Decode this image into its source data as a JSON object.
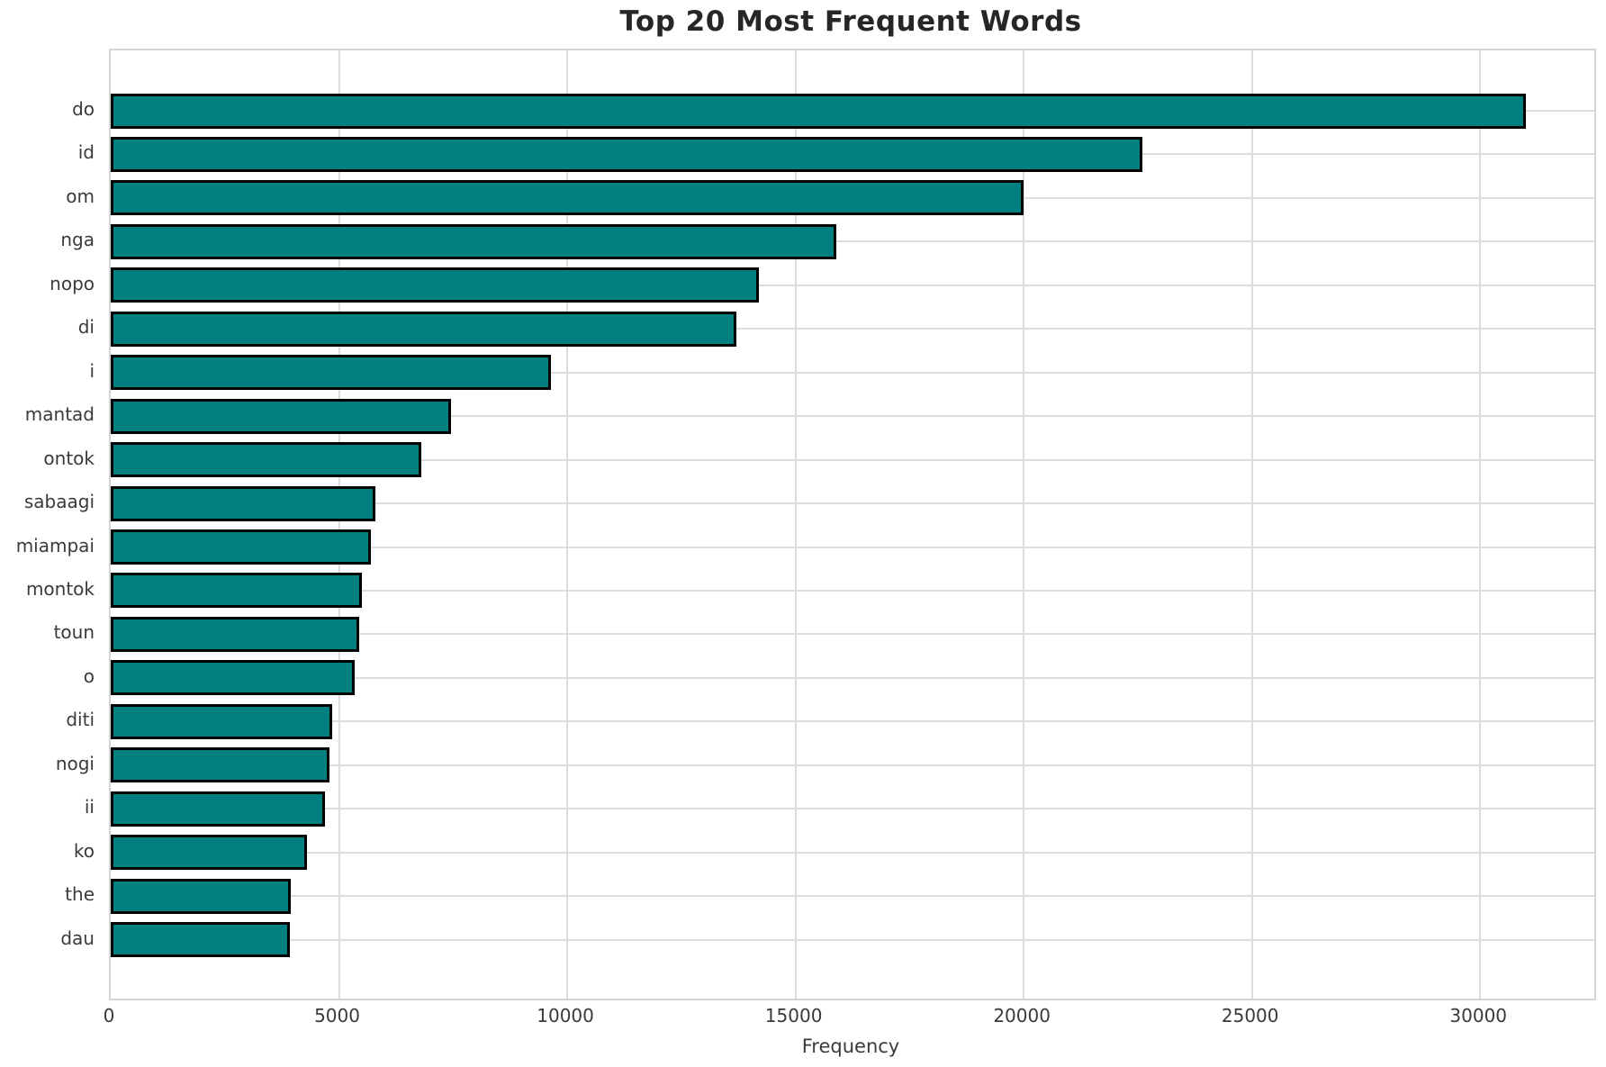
{
  "title": "Top 20 Most Frequent Words",
  "chart_data": {
    "type": "bar",
    "orientation": "horizontal",
    "title": "Top 20 Most Frequent Words",
    "xlabel": "Frequency",
    "ylabel": "",
    "categories": [
      "do",
      "id",
      "om",
      "nga",
      "nopo",
      "di",
      "i",
      "mantad",
      "ontok",
      "sabaagi",
      "miampai",
      "montok",
      "toun",
      "o",
      "diti",
      "nogi",
      "ii",
      "ko",
      "the",
      "dau"
    ],
    "values": [
      31000,
      22600,
      20000,
      15900,
      14200,
      13700,
      9650,
      7450,
      6800,
      5800,
      5700,
      5500,
      5450,
      5350,
      4850,
      4800,
      4700,
      4300,
      3950,
      3930
    ],
    "xticks": [
      0,
      5000,
      10000,
      15000,
      20000,
      25000,
      30000
    ],
    "xtick_labels": [
      "0",
      "5000",
      "10000",
      "15000",
      "20000",
      "25000",
      "30000"
    ],
    "xlim": [
      0,
      32500
    ],
    "grid": true,
    "legend": false,
    "bar_color": "#008080",
    "bar_edge_color": "#000000",
    "grid_color": "#dcdcdc",
    "tick_text_color": "#3a3a3a",
    "title_color": "#262626",
    "background_color": "#ffffff"
  }
}
